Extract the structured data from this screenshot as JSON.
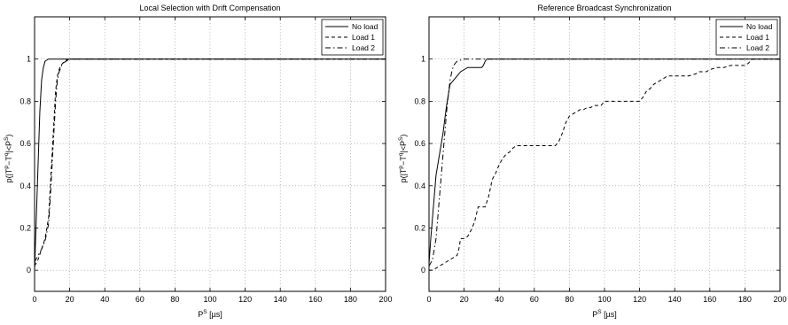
{
  "chart_data": [
    {
      "type": "line",
      "title": "Local Selection with Drift Compensation",
      "xlabel": {
        "base": "P",
        "sup": "S",
        "unit": " [µs]"
      },
      "ylabel": {
        "text": "p(|T",
        "sup1": "p",
        "mid": "−T",
        "sup2": "q",
        "mid2": "|<P",
        "sup3": "S",
        "end": ")"
      },
      "xlim": [
        0,
        200
      ],
      "ylim": [
        -0.1,
        1.2
      ],
      "xticks": [
        "0",
        "20",
        "40",
        "60",
        "80",
        "100",
        "120",
        "140",
        "160",
        "180",
        "200"
      ],
      "yticks": [
        "0",
        "0.2",
        "0.4",
        "0.6",
        "0.8",
        "1"
      ],
      "grid": true,
      "legend_position": "top-right",
      "series": [
        {
          "name": "No load",
          "style": "solid",
          "x": [
            0,
            1,
            2,
            3,
            4,
            5,
            6,
            7,
            8,
            200
          ],
          "y": [
            0.0,
            0.25,
            0.5,
            0.75,
            0.9,
            0.96,
            0.99,
            0.995,
            1.0,
            1.0
          ]
        },
        {
          "name": "Load 1",
          "style": "dashed",
          "x": [
            0,
            2,
            4,
            6,
            8,
            9,
            10,
            11,
            12,
            13,
            14,
            15,
            16,
            18,
            20,
            200
          ],
          "y": [
            0.02,
            0.05,
            0.1,
            0.15,
            0.25,
            0.4,
            0.55,
            0.7,
            0.85,
            0.92,
            0.95,
            0.97,
            0.98,
            0.995,
            1.0,
            1.0
          ]
        },
        {
          "name": "Load 2",
          "style": "dashdot",
          "x": [
            0,
            2,
            4,
            6,
            8,
            9,
            10,
            11,
            12,
            13,
            14,
            15,
            16,
            18,
            20,
            200
          ],
          "y": [
            0.04,
            0.07,
            0.1,
            0.14,
            0.22,
            0.35,
            0.5,
            0.65,
            0.8,
            0.9,
            0.94,
            0.96,
            0.98,
            0.99,
            1.0,
            1.0
          ]
        }
      ]
    },
    {
      "type": "line",
      "title": "Reference Broadcast Synchronization",
      "xlabel": {
        "base": "P",
        "sup": "S",
        "unit": " [µs]"
      },
      "ylabel": {
        "text": "p(|T",
        "sup1": "p",
        "mid": "−T",
        "sup2": "q",
        "mid2": "|<P",
        "sup3": "S",
        "end": ")"
      },
      "xlim": [
        0,
        200
      ],
      "ylim": [
        -0.1,
        1.2
      ],
      "xticks": [
        "0",
        "20",
        "40",
        "60",
        "80",
        "100",
        "120",
        "140",
        "160",
        "180",
        "200"
      ],
      "yticks": [
        "0",
        "0.2",
        "0.4",
        "0.6",
        "0.8",
        "1"
      ],
      "grid": true,
      "legend_position": "top-right",
      "series": [
        {
          "name": "No load",
          "style": "solid",
          "x": [
            0,
            1,
            2,
            3,
            4,
            5,
            6,
            8,
            10,
            12,
            14,
            16,
            18,
            20,
            22,
            24,
            26,
            28,
            30,
            31,
            32,
            33,
            200
          ],
          "y": [
            0.03,
            0.15,
            0.25,
            0.35,
            0.45,
            0.5,
            0.55,
            0.65,
            0.78,
            0.88,
            0.9,
            0.92,
            0.94,
            0.95,
            0.96,
            0.96,
            0.96,
            0.96,
            0.96,
            0.97,
            0.99,
            1.0,
            1.0
          ]
        },
        {
          "name": "Load 1",
          "style": "dashed",
          "x": [
            0,
            2,
            4,
            6,
            8,
            10,
            12,
            14,
            16,
            17,
            18,
            20,
            22,
            24,
            26,
            28,
            30,
            32,
            34,
            36,
            38,
            40,
            42,
            44,
            46,
            48,
            50,
            52,
            54,
            56,
            60,
            64,
            68,
            72,
            74,
            76,
            78,
            80,
            82,
            84,
            86,
            88,
            90,
            92,
            94,
            96,
            98,
            100,
            102,
            104,
            110,
            116,
            120,
            122,
            124,
            126,
            128,
            130,
            132,
            134,
            136,
            138,
            140,
            144,
            148,
            152,
            154,
            156,
            158,
            160,
            164,
            168,
            172,
            176,
            180,
            182,
            184,
            200
          ],
          "y": [
            0.0,
            0.0,
            0.01,
            0.02,
            0.03,
            0.04,
            0.05,
            0.06,
            0.07,
            0.1,
            0.15,
            0.15,
            0.16,
            0.19,
            0.23,
            0.3,
            0.3,
            0.3,
            0.35,
            0.43,
            0.46,
            0.5,
            0.53,
            0.55,
            0.56,
            0.58,
            0.59,
            0.59,
            0.59,
            0.59,
            0.59,
            0.59,
            0.59,
            0.59,
            0.61,
            0.65,
            0.7,
            0.73,
            0.74,
            0.75,
            0.76,
            0.76,
            0.77,
            0.77,
            0.78,
            0.78,
            0.78,
            0.8,
            0.8,
            0.8,
            0.8,
            0.8,
            0.8,
            0.82,
            0.85,
            0.86,
            0.88,
            0.89,
            0.9,
            0.91,
            0.92,
            0.92,
            0.92,
            0.92,
            0.92,
            0.93,
            0.94,
            0.94,
            0.94,
            0.95,
            0.96,
            0.96,
            0.97,
            0.97,
            0.97,
            0.98,
            1.0,
            1.0
          ]
        },
        {
          "name": "Load 2",
          "style": "dashdot",
          "x": [
            0,
            2,
            4,
            5,
            6,
            7,
            8,
            9,
            10,
            11,
            12,
            13,
            14,
            15,
            16,
            18,
            20,
            22,
            200
          ],
          "y": [
            0.02,
            0.05,
            0.15,
            0.25,
            0.35,
            0.45,
            0.55,
            0.65,
            0.75,
            0.83,
            0.9,
            0.94,
            0.97,
            0.98,
            0.99,
            0.995,
            1.0,
            1.0,
            1.0
          ]
        }
      ]
    }
  ]
}
